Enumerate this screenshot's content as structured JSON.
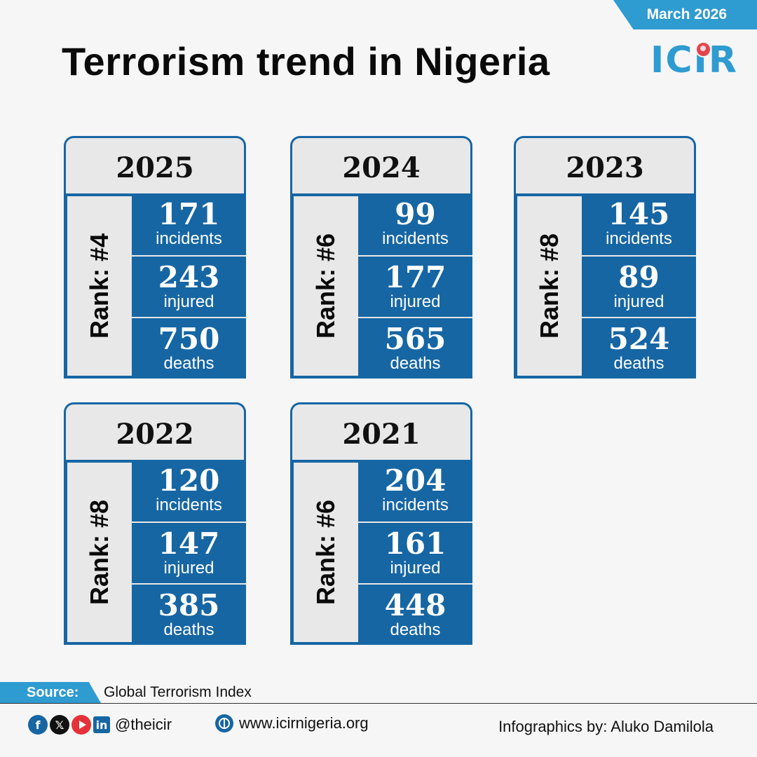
{
  "header": {
    "date": "March 2026",
    "title": "Terrorism trend in Nigeria",
    "logo_text": "ICIR"
  },
  "colors": {
    "brand_blue": "#1666a4",
    "accent_blue": "#2e9bd1",
    "panel_gray": "#e8e8e8",
    "logo_red": "#e4454d"
  },
  "cards": [
    {
      "year": "2025",
      "rank": "Rank: #4",
      "incidents": "171",
      "incidents_label": "incidents",
      "injured": "243",
      "injured_label": "injured",
      "deaths": "750",
      "deaths_label": "deaths"
    },
    {
      "year": "2024",
      "rank": "Rank: #6",
      "incidents": "99",
      "incidents_label": "incidents",
      "injured": "177",
      "injured_label": "injured",
      "deaths": "565",
      "deaths_label": "deaths"
    },
    {
      "year": "2023",
      "rank": "Rank: #8",
      "incidents": "145",
      "incidents_label": "incidents",
      "injured": "89",
      "injured_label": "injured",
      "deaths": "524",
      "deaths_label": "deaths"
    },
    {
      "year": "2022",
      "rank": "Rank: #8",
      "incidents": "120",
      "incidents_label": "incidents",
      "injured": "147",
      "injured_label": "injured",
      "deaths": "385",
      "deaths_label": "deaths"
    },
    {
      "year": "2021",
      "rank": "Rank: #6",
      "incidents": "204",
      "incidents_label": "incidents",
      "injured": "161",
      "injured_label": "injured",
      "deaths": "448",
      "deaths_label": "deaths"
    }
  ],
  "source": {
    "label": "Source:",
    "text": "Global Terrorism Index"
  },
  "footer": {
    "social_icons": [
      "facebook-icon",
      "x-icon",
      "youtube-icon",
      "linkedin-icon"
    ],
    "handle": "@theicir",
    "website": "www.icirnigeria.org",
    "credit": "Infographics by: Aluko Damilola"
  }
}
